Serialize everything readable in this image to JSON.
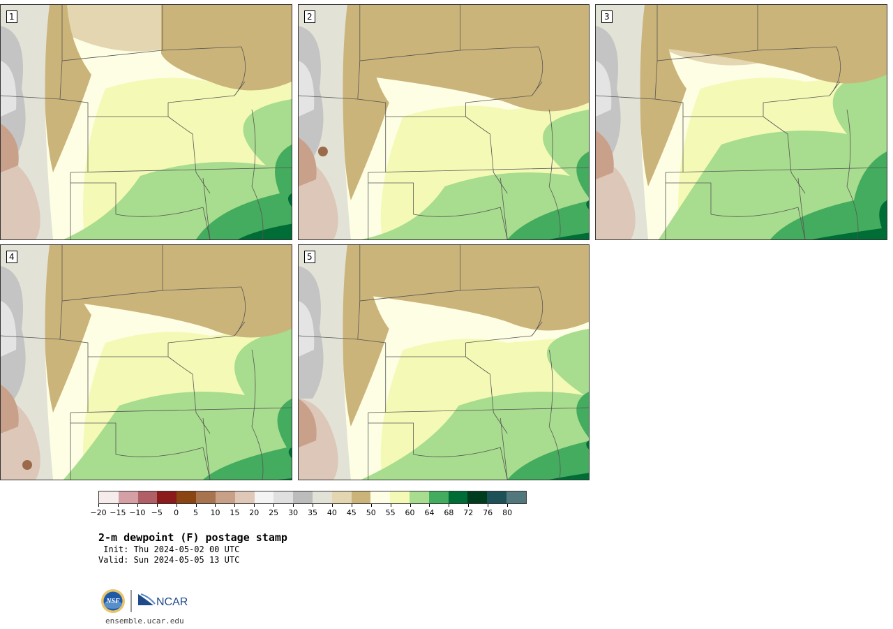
{
  "panels": [
    {
      "label": "1"
    },
    {
      "label": "2"
    },
    {
      "label": "3"
    },
    {
      "label": "4"
    },
    {
      "label": "5"
    }
  ],
  "colorbar": {
    "colors": [
      "#f6ecec",
      "#d4a0a6",
      "#b05f66",
      "#8b1a1a",
      "#8a4513",
      "#a87450",
      "#c8a088",
      "#e0c8b8",
      "#f4f4f4",
      "#e0e0e0",
      "#bcbcbc",
      "#e2e2d6",
      "#e4d6b0",
      "#cbb47a",
      "#fefee4",
      "#f4fab6",
      "#a8dc8e",
      "#44ac5e",
      "#006c36",
      "#003c1e",
      "#1e5058",
      "#52787e"
    ],
    "tick_labels": [
      "−20",
      "−15",
      "−10",
      "−5",
      "0",
      "5",
      "10",
      "15",
      "20",
      "25",
      "30",
      "35",
      "40",
      "45",
      "50",
      "55",
      "60",
      "64",
      "68",
      "72",
      "76",
      "80"
    ]
  },
  "title": "2-m dewpoint (F) postage stamp",
  "init": " Init: Thu 2024-05-02 00 UTC",
  "valid": "Valid: Sun 2024-05-05 13 UTC",
  "logos": {
    "nsf": "NSF",
    "ncar": "NCAR"
  },
  "site": "ensemble.ucar.edu"
}
